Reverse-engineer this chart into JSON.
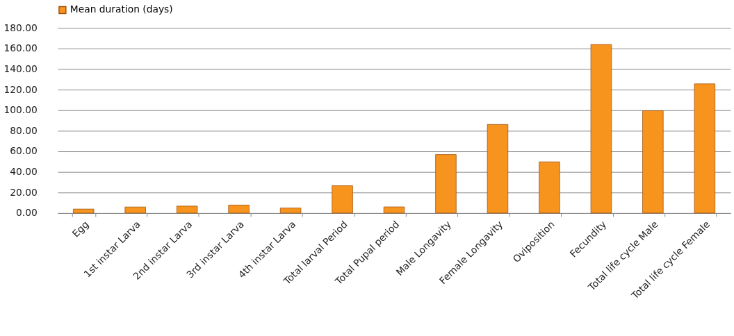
{
  "chart_data": {
    "type": "bar",
    "categories": [
      "Egg",
      "1st instar  Larva",
      "2nd instar  Larva",
      "3rd instar  Larva",
      "4th instar  Larva",
      "Total larval Period",
      "Total Pupal period",
      "Male Longavity",
      "Female  Longavity",
      "Oviposition",
      "Fecundity",
      "Total life cycle Male",
      "Total life cycle Female"
    ],
    "series": [
      {
        "name": "Mean duration (days)",
        "color": "#f7941d",
        "values": [
          3.9,
          5.9,
          6.8,
          7.8,
          4.9,
          26.6,
          6.0,
          56.9,
          86.1,
          49.8,
          163.9,
          99.5,
          125.6
        ]
      }
    ],
    "ylim": [
      0,
      180
    ],
    "yticks": [
      {
        "value": 0,
        "label": "0.00"
      },
      {
        "value": 20,
        "label": "20.00"
      },
      {
        "value": 40,
        "label": "40.00"
      },
      {
        "value": 60,
        "label": "60.00"
      },
      {
        "value": 80,
        "label": "80.00"
      },
      {
        "value": 100,
        "label": "100.00"
      },
      {
        "value": 120,
        "label": "120.00"
      },
      {
        "value": 140,
        "label": "140.00"
      },
      {
        "value": 160,
        "label": "160.00"
      },
      {
        "value": 180,
        "label": "180.00"
      }
    ],
    "grid": "y",
    "legend": "top"
  }
}
